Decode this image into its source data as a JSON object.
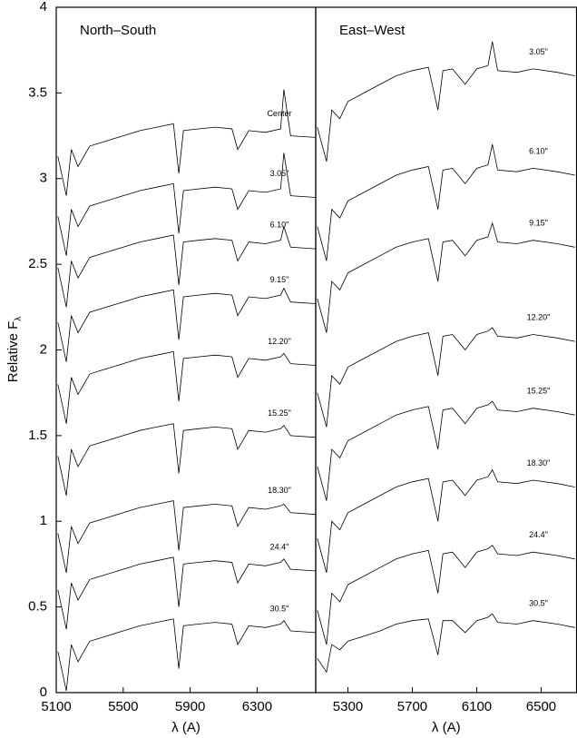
{
  "chart_data": [
    {
      "type": "line",
      "title": "North–South",
      "xlabel": "λ (A)",
      "ylabel": "Relative F",
      "ylabel_subscript": "λ",
      "x": [
        5110,
        5160,
        5190,
        5230,
        5300,
        5400,
        5500,
        5600,
        5700,
        5800,
        5832,
        5860,
        5950,
        6050,
        6150,
        6184,
        6250,
        6350,
        6440,
        6460,
        6500,
        6650
      ],
      "xlim": [
        5100,
        6650
      ],
      "xticks": [
        5100,
        5500,
        5900,
        6300
      ],
      "ylim": [
        0,
        4
      ],
      "yticks": [
        0,
        0.5,
        1,
        1.5,
        2,
        2.5,
        3,
        3.5,
        4
      ],
      "series": [
        {
          "name": "Center",
          "color": "#000000",
          "values": [
            3.13,
            2.9,
            3.17,
            3.07,
            3.19,
            3.22,
            3.25,
            3.28,
            3.3,
            3.32,
            3.03,
            3.28,
            3.29,
            3.3,
            3.29,
            3.17,
            3.28,
            3.27,
            3.29,
            3.52,
            3.25,
            3.24
          ]
        },
        {
          "name": "3.05\"",
          "color": "#000000",
          "values": [
            2.78,
            2.55,
            2.82,
            2.72,
            2.84,
            2.87,
            2.9,
            2.93,
            2.95,
            2.97,
            2.68,
            2.93,
            2.94,
            2.95,
            2.94,
            2.82,
            2.93,
            2.92,
            2.94,
            3.15,
            2.9,
            2.89
          ]
        },
        {
          "name": "6.10\"",
          "color": "#000000",
          "values": [
            2.48,
            2.25,
            2.52,
            2.42,
            2.54,
            2.57,
            2.6,
            2.63,
            2.65,
            2.67,
            2.38,
            2.63,
            2.64,
            2.65,
            2.64,
            2.52,
            2.63,
            2.62,
            2.64,
            2.72,
            2.6,
            2.59
          ]
        },
        {
          "name": "9.15\"",
          "color": "#000000",
          "values": [
            2.16,
            1.93,
            2.2,
            2.1,
            2.22,
            2.25,
            2.28,
            2.31,
            2.33,
            2.35,
            2.06,
            2.31,
            2.32,
            2.33,
            2.32,
            2.2,
            2.31,
            2.3,
            2.32,
            2.36,
            2.28,
            2.27
          ]
        },
        {
          "name": "12.20\"",
          "color": "#000000",
          "values": [
            1.8,
            1.57,
            1.84,
            1.74,
            1.86,
            1.89,
            1.92,
            1.95,
            1.97,
            1.99,
            1.7,
            1.95,
            1.96,
            1.97,
            1.96,
            1.84,
            1.95,
            1.94,
            1.96,
            1.98,
            1.92,
            1.91
          ]
        },
        {
          "name": "15.25\"",
          "color": "#000000",
          "values": [
            1.38,
            1.15,
            1.42,
            1.32,
            1.44,
            1.47,
            1.5,
            1.53,
            1.55,
            1.57,
            1.28,
            1.53,
            1.54,
            1.55,
            1.54,
            1.42,
            1.53,
            1.52,
            1.54,
            1.56,
            1.5,
            1.49
          ]
        },
        {
          "name": "18.30\"",
          "color": "#000000",
          "values": [
            0.93,
            0.7,
            0.97,
            0.87,
            0.99,
            1.02,
            1.05,
            1.08,
            1.1,
            1.12,
            0.83,
            1.08,
            1.09,
            1.1,
            1.09,
            0.97,
            1.08,
            1.07,
            1.09,
            1.1,
            1.05,
            1.04
          ]
        },
        {
          "name": "24.4\"",
          "color": "#000000",
          "values": [
            0.6,
            0.37,
            0.64,
            0.54,
            0.66,
            0.69,
            0.72,
            0.75,
            0.77,
            0.79,
            0.5,
            0.75,
            0.76,
            0.77,
            0.76,
            0.64,
            0.75,
            0.74,
            0.76,
            0.78,
            0.72,
            0.71
          ]
        },
        {
          "name": "30.5\"",
          "color": "#000000",
          "values": [
            0.24,
            0.01,
            0.28,
            0.18,
            0.3,
            0.33,
            0.36,
            0.39,
            0.41,
            0.43,
            0.14,
            0.39,
            0.4,
            0.41,
            0.4,
            0.28,
            0.39,
            0.38,
            0.4,
            0.42,
            0.36,
            0.35
          ]
        }
      ]
    },
    {
      "type": "line",
      "title": "East–West",
      "xlabel": "λ (A)",
      "x": [
        5110,
        5167,
        5200,
        5250,
        5300,
        5400,
        5500,
        5600,
        5700,
        5800,
        5859,
        5890,
        5950,
        6028,
        6100,
        6170,
        6197,
        6230,
        6350,
        6450,
        6600,
        6710
      ],
      "xlim": [
        5100,
        6720
      ],
      "xticks": [
        5300,
        5700,
        6100,
        6500
      ],
      "ylim": [
        0,
        4
      ],
      "series": [
        {
          "name": "3.05\"",
          "color": "#000000",
          "values": [
            3.3,
            3.1,
            3.4,
            3.35,
            3.45,
            3.5,
            3.55,
            3.6,
            3.63,
            3.65,
            3.4,
            3.63,
            3.64,
            3.55,
            3.64,
            3.66,
            3.8,
            3.63,
            3.62,
            3.64,
            3.62,
            3.6
          ]
        },
        {
          "name": "6.10\"",
          "color": "#000000",
          "values": [
            2.72,
            2.52,
            2.82,
            2.77,
            2.87,
            2.92,
            2.97,
            3.02,
            3.05,
            3.07,
            2.82,
            3.05,
            3.06,
            2.97,
            3.06,
            3.08,
            3.2,
            3.05,
            3.04,
            3.06,
            3.04,
            3.02
          ]
        },
        {
          "name": "9.15\"",
          "color": "#000000",
          "values": [
            2.3,
            2.1,
            2.4,
            2.35,
            2.45,
            2.5,
            2.55,
            2.6,
            2.63,
            2.65,
            2.4,
            2.63,
            2.64,
            2.55,
            2.64,
            2.66,
            2.74,
            2.63,
            2.62,
            2.64,
            2.62,
            2.6
          ]
        },
        {
          "name": "12.20\"",
          "color": "#000000",
          "values": [
            1.75,
            1.55,
            1.85,
            1.8,
            1.9,
            1.95,
            2.0,
            2.05,
            2.08,
            2.1,
            1.85,
            2.08,
            2.09,
            2.0,
            2.09,
            2.11,
            2.13,
            2.08,
            2.07,
            2.09,
            2.07,
            2.05
          ]
        },
        {
          "name": "15.25\"",
          "color": "#000000",
          "values": [
            1.32,
            1.12,
            1.42,
            1.37,
            1.47,
            1.52,
            1.57,
            1.62,
            1.65,
            1.67,
            1.42,
            1.65,
            1.66,
            1.57,
            1.66,
            1.68,
            1.7,
            1.65,
            1.64,
            1.66,
            1.64,
            1.62
          ]
        },
        {
          "name": "18.30\"",
          "color": "#000000",
          "values": [
            0.9,
            0.7,
            1.0,
            0.95,
            1.05,
            1.1,
            1.15,
            1.2,
            1.23,
            1.25,
            1.0,
            1.23,
            1.24,
            1.15,
            1.24,
            1.26,
            1.3,
            1.23,
            1.22,
            1.24,
            1.22,
            1.2
          ]
        },
        {
          "name": "24.4\"",
          "color": "#000000",
          "values": [
            0.48,
            0.28,
            0.58,
            0.53,
            0.63,
            0.68,
            0.73,
            0.78,
            0.81,
            0.83,
            0.58,
            0.81,
            0.82,
            0.73,
            0.82,
            0.84,
            0.86,
            0.81,
            0.8,
            0.82,
            0.8,
            0.78
          ]
        },
        {
          "name": "30.5\"",
          "color": "#000000",
          "values": [
            0.2,
            0.12,
            0.28,
            0.25,
            0.3,
            0.33,
            0.36,
            0.4,
            0.42,
            0.43,
            0.22,
            0.42,
            0.42,
            0.35,
            0.42,
            0.44,
            0.46,
            0.41,
            0.4,
            0.42,
            0.4,
            0.38
          ]
        }
      ]
    }
  ]
}
